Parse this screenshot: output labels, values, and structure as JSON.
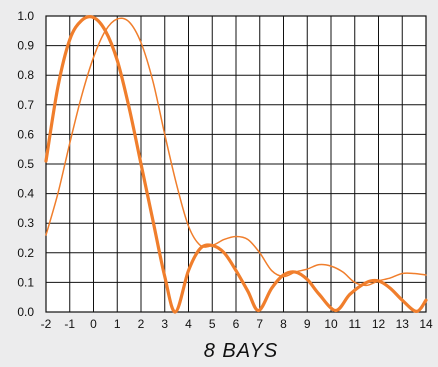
{
  "chart_data": {
    "type": "line",
    "title": "8 BAYS",
    "xlabel": "",
    "ylabel": "",
    "xlim": [
      -2,
      14
    ],
    "ylim": [
      0,
      1
    ],
    "x_ticks": [
      "-2",
      "-1",
      "0",
      "1",
      "2",
      "3",
      "4",
      "5",
      "6",
      "7",
      "8",
      "9",
      "10",
      "11",
      "12",
      "13",
      "14"
    ],
    "y_ticks": [
      "0.0",
      "0.1",
      "0.2",
      "0.3",
      "0.4",
      "0.5",
      "0.6",
      "0.7",
      "0.8",
      "0.9",
      "1.0"
    ],
    "grid": true,
    "legend": "none",
    "colors": {
      "line": "#f07e2c",
      "grid": "#111111",
      "background": "#ffffff"
    },
    "series": [
      {
        "style": "thick",
        "points": [
          [
            -2,
            0.51
          ],
          [
            -1.5,
            0.76
          ],
          [
            -1,
            0.92
          ],
          [
            -0.5,
            0.985
          ],
          [
            0,
            0.995
          ],
          [
            0.5,
            0.95
          ],
          [
            1,
            0.85
          ],
          [
            1.5,
            0.69
          ],
          [
            2,
            0.5
          ],
          [
            2.5,
            0.31
          ],
          [
            3,
            0.12
          ],
          [
            3.45,
            0.0
          ],
          [
            4,
            0.14
          ],
          [
            4.5,
            0.215
          ],
          [
            5,
            0.225
          ],
          [
            5.5,
            0.2
          ],
          [
            6,
            0.14
          ],
          [
            6.5,
            0.07
          ],
          [
            6.95,
            0.005
          ],
          [
            7.5,
            0.08
          ],
          [
            8,
            0.125
          ],
          [
            8.5,
            0.135
          ],
          [
            9,
            0.11
          ],
          [
            9.5,
            0.06
          ],
          [
            10.2,
            0.005
          ],
          [
            10.8,
            0.06
          ],
          [
            11.5,
            0.1
          ],
          [
            12,
            0.105
          ],
          [
            12.5,
            0.08
          ],
          [
            13,
            0.04
          ],
          [
            13.6,
            0.002
          ],
          [
            14,
            0.04
          ]
        ]
      },
      {
        "style": "thin",
        "points": [
          [
            -2,
            0.26
          ],
          [
            -1.5,
            0.4
          ],
          [
            -1,
            0.57
          ],
          [
            -0.5,
            0.73
          ],
          [
            0,
            0.86
          ],
          [
            0.5,
            0.95
          ],
          [
            1,
            0.99
          ],
          [
            1.5,
            0.98
          ],
          [
            2,
            0.91
          ],
          [
            2.5,
            0.78
          ],
          [
            3,
            0.6
          ],
          [
            3.5,
            0.43
          ],
          [
            4,
            0.29
          ],
          [
            4.5,
            0.225
          ],
          [
            5,
            0.225
          ],
          [
            5.5,
            0.245
          ],
          [
            6,
            0.255
          ],
          [
            6.5,
            0.245
          ],
          [
            7,
            0.2
          ],
          [
            7.5,
            0.14
          ],
          [
            8,
            0.12
          ],
          [
            8.5,
            0.135
          ],
          [
            9,
            0.145
          ],
          [
            9.5,
            0.16
          ],
          [
            10,
            0.155
          ],
          [
            10.5,
            0.135
          ],
          [
            11,
            0.1
          ],
          [
            11.5,
            0.09
          ],
          [
            12,
            0.105
          ],
          [
            12.5,
            0.115
          ],
          [
            13,
            0.13
          ],
          [
            13.5,
            0.13
          ],
          [
            14,
            0.125
          ]
        ]
      }
    ]
  }
}
